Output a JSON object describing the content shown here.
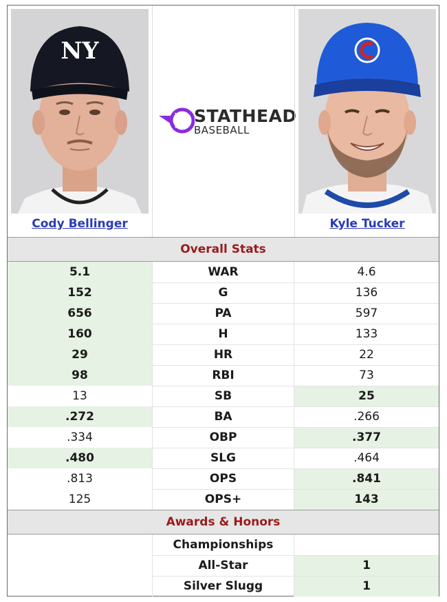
{
  "players": {
    "left": {
      "name": "Cody Bellinger"
    },
    "right": {
      "name": "Kyle Tucker"
    }
  },
  "logo": {
    "line1": "STATHEAD",
    "line2": "BASEBALL"
  },
  "sections": {
    "overall": "Overall Stats",
    "awards": "Awards & Honors"
  },
  "stats": [
    {
      "label": "WAR",
      "left": "5.1",
      "right": "4.6",
      "winner": "left"
    },
    {
      "label": "G",
      "left": "152",
      "right": "136",
      "winner": "left"
    },
    {
      "label": "PA",
      "left": "656",
      "right": "597",
      "winner": "left"
    },
    {
      "label": "H",
      "left": "160",
      "right": "133",
      "winner": "left"
    },
    {
      "label": "HR",
      "left": "29",
      "right": "22",
      "winner": "left"
    },
    {
      "label": "RBI",
      "left": "98",
      "right": "73",
      "winner": "left"
    },
    {
      "label": "SB",
      "left": "13",
      "right": "25",
      "winner": "right"
    },
    {
      "label": "BA",
      "left": ".272",
      "right": ".266",
      "winner": "left"
    },
    {
      "label": "OBP",
      "left": ".334",
      "right": ".377",
      "winner": "right"
    },
    {
      "label": "SLG",
      "left": ".480",
      "right": ".464",
      "winner": "left"
    },
    {
      "label": "OPS",
      "left": ".813",
      "right": ".841",
      "winner": "right"
    },
    {
      "label": "OPS+",
      "left": "125",
      "right": "143",
      "winner": "right"
    }
  ],
  "awards": [
    {
      "label": "Championships",
      "left": "",
      "right": "",
      "winner": "none"
    },
    {
      "label": "All-Star",
      "left": "",
      "right": "1",
      "winner": "right"
    },
    {
      "label": "Silver Slugg",
      "left": "",
      "right": "1",
      "winner": "right"
    }
  ],
  "colors": {
    "winner_bg": "#e6f2e3",
    "section_text": "#9b1b1b",
    "link": "#2a3bb5",
    "logo_purple": "#8a2be2"
  }
}
